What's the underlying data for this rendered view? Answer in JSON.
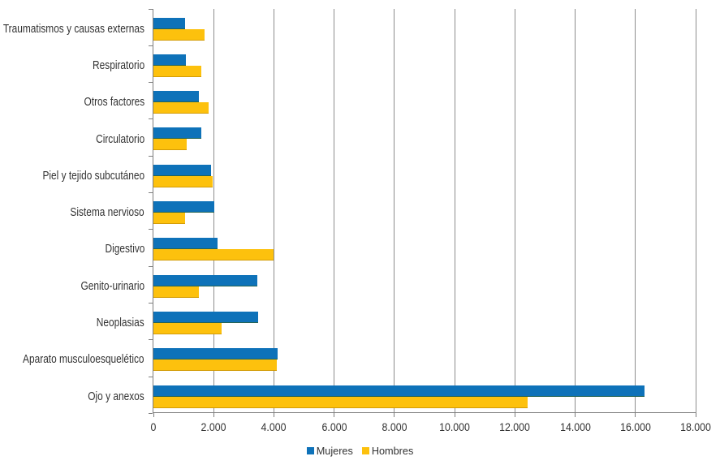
{
  "chart_data": {
    "type": "bar",
    "orientation": "horizontal",
    "title": "",
    "xlabel": "",
    "ylabel": "",
    "categories": [
      "Traumatismos y causas externas",
      "Respiratorio",
      "Otros factores",
      "Circulatorio",
      "Piel y tejido subcutáneo",
      "Sistema nervioso",
      "Digestivo",
      "Genito-urinario",
      "Neoplasias",
      "Aparato musculoesquelético",
      "Ojo y anexos"
    ],
    "series": [
      {
        "name": "Mujeres",
        "color": "#0E72B9",
        "edge_color": "#256455",
        "values": [
          1050,
          1080,
          1510,
          1590,
          1910,
          2030,
          2140,
          3450,
          3480,
          4110,
          16310
        ]
      },
      {
        "name": "Hombres",
        "color": "#FDC10D",
        "edge_color": "#D39C06",
        "values": [
          1700,
          1590,
          1840,
          1100,
          1980,
          1050,
          3980,
          1510,
          2250,
          4090,
          12420
        ]
      }
    ],
    "xlim": [
      0,
      18000
    ],
    "x_tick_step": 2000,
    "x_tick_labels": [
      "0",
      "2.000",
      "4.000",
      "6.000",
      "8.000",
      "10.000",
      "12.000",
      "14.000",
      "16.000",
      "18.000"
    ],
    "grid": true,
    "legend_position": "bottom",
    "grid_color": "#8D8D8D",
    "axis_color": "#7E7E7E",
    "text_color": "#333333",
    "background_color": "#FFFFFF"
  }
}
